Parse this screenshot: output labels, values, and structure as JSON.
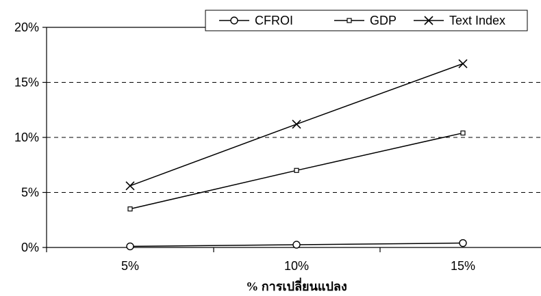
{
  "chart_data": {
    "type": "line",
    "title": "",
    "xlabel": "% การเปลี่ยนแปลง",
    "ylabel": "",
    "categories": [
      "5%",
      "10%",
      "15%"
    ],
    "y_ticks": [
      "0%",
      "5%",
      "10%",
      "15%",
      "20%"
    ],
    "ylim": [
      0,
      20
    ],
    "grid": "horizontal dashed",
    "legend_position": "top-right",
    "series": [
      {
        "name": "CFROI",
        "marker": "circle",
        "values": [
          0.1,
          0.25,
          0.4
        ]
      },
      {
        "name": "GDP",
        "marker": "square",
        "values": [
          3.5,
          7.0,
          10.4
        ]
      },
      {
        "name": "Text Index",
        "marker": "x",
        "values": [
          5.6,
          11.2,
          16.7
        ]
      }
    ]
  }
}
